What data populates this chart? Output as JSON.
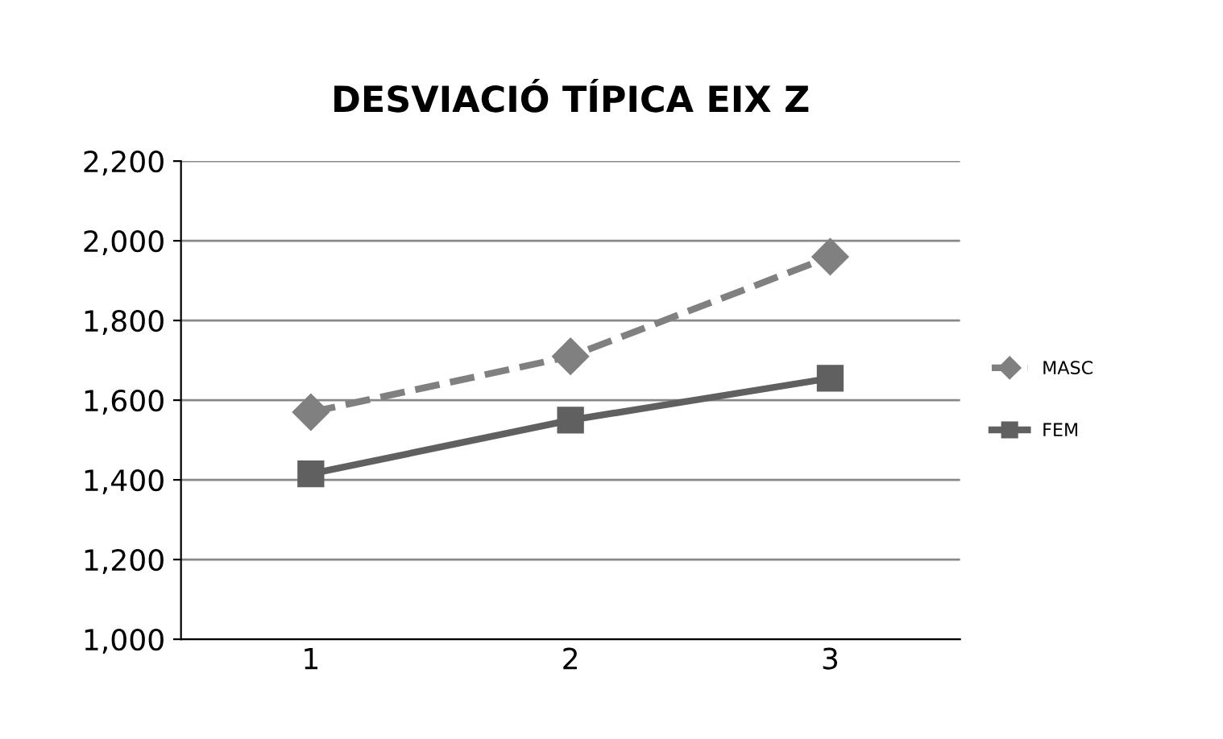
{
  "chart_data": {
    "type": "line",
    "title": "DESVIACIÓ TÍPICA EIX Z",
    "categories": [
      "1",
      "2",
      "3"
    ],
    "series": [
      {
        "name": "MASC",
        "color": "#808080",
        "values": [
          1570,
          1710,
          1960
        ],
        "marker": "diamond",
        "line_style": "dashed"
      },
      {
        "name": "FEM",
        "color": "#606060",
        "values": [
          1415,
          1550,
          1655
        ],
        "marker": "square",
        "line_style": "solid"
      }
    ],
    "ylim": [
      1000,
      2200
    ],
    "yticks": [
      {
        "value": 1000,
        "label": "1,000"
      },
      {
        "value": 1200,
        "label": "1,200"
      },
      {
        "value": 1400,
        "label": "1,400"
      },
      {
        "value": 1600,
        "label": "1,600"
      },
      {
        "value": 1800,
        "label": "1,800"
      },
      {
        "value": 2000,
        "label": "2,000"
      },
      {
        "value": 2200,
        "label": "2,200"
      }
    ],
    "grid": "y",
    "legend": "right"
  }
}
